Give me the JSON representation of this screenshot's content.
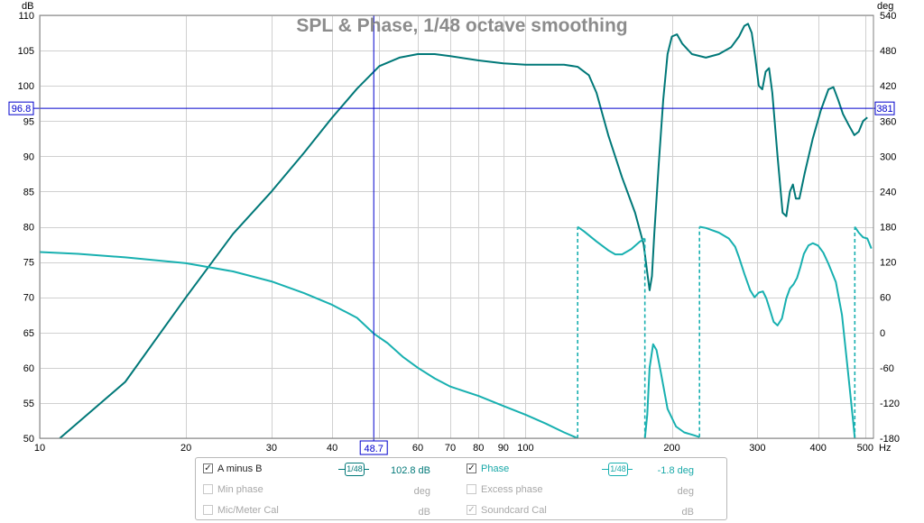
{
  "chart_data": {
    "type": "line",
    "title": "SPL & Phase, 1/48 octave smoothing",
    "x_unit": "Hz",
    "x_scale": "log",
    "xlim": [
      10,
      520
    ],
    "x_ticks": [
      10,
      20,
      30,
      40,
      50,
      60,
      70,
      80,
      90,
      100,
      200,
      300,
      400,
      500
    ],
    "y_left_unit": "dB",
    "ylim_left": [
      50,
      110
    ],
    "y_left_ticks": [
      50,
      55,
      60,
      65,
      70,
      75,
      80,
      85,
      90,
      95,
      100,
      105,
      110
    ],
    "y_right_unit": "deg",
    "ylim_right": [
      -180,
      540
    ],
    "y_right_ticks": [
      -180,
      -120,
      -60,
      0,
      60,
      120,
      180,
      240,
      300,
      360,
      420,
      480,
      540
    ],
    "grid": true,
    "cursor": {
      "x_label": "48.7",
      "y_left_label": "96.8",
      "y_right_label": "381"
    },
    "series": [
      {
        "name": "A minus B",
        "axis": "left",
        "color": "#007878",
        "points": [
          [
            11,
            50
          ],
          [
            15,
            58
          ],
          [
            20,
            70
          ],
          [
            25,
            79
          ],
          [
            30,
            85
          ],
          [
            35,
            90.5
          ],
          [
            40,
            95.5
          ],
          [
            45,
            99.6
          ],
          [
            50,
            102.8
          ],
          [
            55,
            104
          ],
          [
            60,
            104.5
          ],
          [
            65,
            104.5
          ],
          [
            70,
            104.2
          ],
          [
            80,
            103.6
          ],
          [
            90,
            103.2
          ],
          [
            100,
            103
          ],
          [
            110,
            103
          ],
          [
            120,
            103
          ],
          [
            128,
            102.7
          ],
          [
            135,
            101.5
          ],
          [
            140,
            99
          ],
          [
            148,
            93
          ],
          [
            158,
            87
          ],
          [
            168,
            82
          ],
          [
            175,
            77.5
          ],
          [
            178,
            73.5
          ],
          [
            180,
            71
          ],
          [
            182,
            73
          ],
          [
            184,
            79
          ],
          [
            188,
            89
          ],
          [
            192,
            98
          ],
          [
            196,
            104.5
          ],
          [
            200,
            107
          ],
          [
            205,
            107.3
          ],
          [
            210,
            106
          ],
          [
            220,
            104.5
          ],
          [
            235,
            104
          ],
          [
            250,
            104.5
          ],
          [
            265,
            105.5
          ],
          [
            275,
            107
          ],
          [
            282,
            108.5
          ],
          [
            287,
            108.8
          ],
          [
            292,
            107.5
          ],
          [
            297,
            104
          ],
          [
            302,
            100
          ],
          [
            307,
            99.5
          ],
          [
            312,
            102
          ],
          [
            317,
            102.5
          ],
          [
            322,
            99
          ],
          [
            330,
            90
          ],
          [
            338,
            82
          ],
          [
            344,
            81.5
          ],
          [
            350,
            85
          ],
          [
            355,
            86
          ],
          [
            360,
            84
          ],
          [
            366,
            84
          ],
          [
            375,
            87.5
          ],
          [
            390,
            92.5
          ],
          [
            405,
            96.5
          ],
          [
            420,
            99.5
          ],
          [
            430,
            99.8
          ],
          [
            440,
            98
          ],
          [
            450,
            96
          ],
          [
            462,
            94.5
          ],
          [
            475,
            93
          ],
          [
            485,
            93.5
          ],
          [
            495,
            95
          ],
          [
            505,
            95.5
          ]
        ]
      },
      {
        "name": "Phase",
        "axis": "right",
        "color": "#18b0b0",
        "dash_color": "#18b0b0",
        "points": [
          [
            10,
            137
          ],
          [
            12,
            134
          ],
          [
            15,
            128
          ],
          [
            20,
            118
          ],
          [
            25,
            104
          ],
          [
            30,
            87
          ],
          [
            35,
            67
          ],
          [
            40,
            47
          ],
          [
            45,
            25
          ],
          [
            48.7,
            -1.8
          ],
          [
            52,
            -18
          ],
          [
            56,
            -42
          ],
          [
            60,
            -60
          ],
          [
            65,
            -78
          ],
          [
            70,
            -92
          ],
          [
            80,
            -108
          ],
          [
            90,
            -125
          ],
          [
            100,
            -140
          ],
          [
            110,
            -155
          ],
          [
            120,
            -170
          ],
          [
            128,
            -180
          ],
          [
            128,
            180
          ],
          [
            132,
            172
          ],
          [
            140,
            155
          ],
          [
            148,
            140
          ],
          [
            153,
            133
          ],
          [
            158,
            133
          ],
          [
            165,
            142
          ],
          [
            172,
            155
          ],
          [
            176,
            160
          ],
          [
            176,
            -180
          ],
          [
            178,
            -140
          ],
          [
            180,
            -60
          ],
          [
            183,
            -20
          ],
          [
            186,
            -30
          ],
          [
            190,
            -70
          ],
          [
            196,
            -130
          ],
          [
            204,
            -160
          ],
          [
            212,
            -170
          ],
          [
            222,
            -175
          ],
          [
            228,
            -178
          ],
          [
            228,
            180
          ],
          [
            235,
            178
          ],
          [
            250,
            170
          ],
          [
            262,
            160
          ],
          [
            270,
            146
          ],
          [
            275,
            128
          ],
          [
            282,
            100
          ],
          [
            290,
            72
          ],
          [
            296,
            60
          ],
          [
            302,
            68
          ],
          [
            308,
            70
          ],
          [
            313,
            58
          ],
          [
            318,
            40
          ],
          [
            324,
            18
          ],
          [
            330,
            12
          ],
          [
            337,
            24
          ],
          [
            344,
            58
          ],
          [
            350,
            75
          ],
          [
            356,
            82
          ],
          [
            362,
            93
          ],
          [
            368,
            112
          ],
          [
            374,
            134
          ],
          [
            382,
            148
          ],
          [
            390,
            152
          ],
          [
            400,
            148
          ],
          [
            410,
            136
          ],
          [
            420,
            117
          ],
          [
            435,
            86
          ],
          [
            448,
            30
          ],
          [
            460,
            -60
          ],
          [
            472,
            -150
          ],
          [
            476,
            -180
          ],
          [
            476,
            180
          ],
          [
            485,
            170
          ],
          [
            495,
            162
          ],
          [
            505,
            160
          ],
          [
            515,
            143
          ]
        ]
      }
    ]
  },
  "legend": {
    "row1": {
      "a_label": "A minus B",
      "a_smoothing": "1/48",
      "a_value": "102.8 dB",
      "b_label": "Phase",
      "b_smoothing": "1/48",
      "b_value": "-1.8 deg"
    },
    "row2": {
      "a_label": "Min phase",
      "a_unit": "deg",
      "b_label": "Excess phase",
      "b_unit": "deg"
    },
    "row3": {
      "a_label": "Mic/Meter Cal",
      "a_unit": "dB",
      "b_label": "Soundcard Cal",
      "b_unit": "dB"
    }
  }
}
